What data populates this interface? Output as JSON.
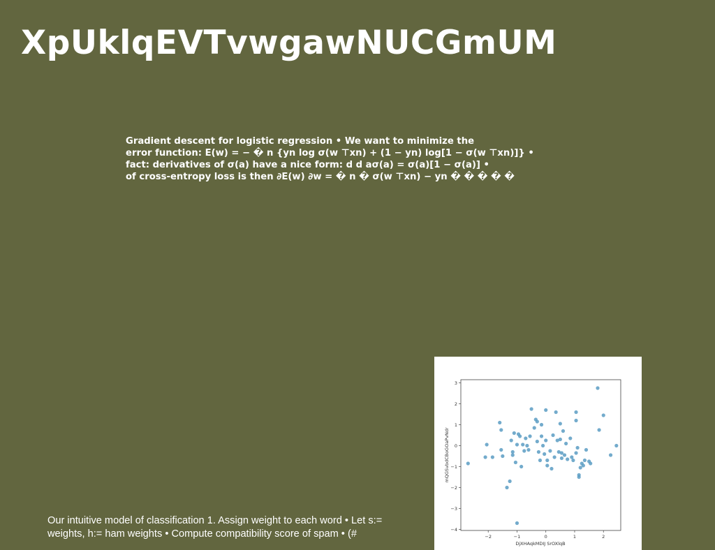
{
  "slide": {
    "title": "XpUklqEVTvwgawNUCGmUM",
    "body_lines": [
      "Gradient descent for logistic regression • We want to minimize the",
      "error function: E(w) = − � n {yn log σ(w ⊤xn) + (1 − yn) log[1 − σ(w ⊤xn)]} •",
      "fact: derivatives of σ(a) have a nice form: d d aσ(a) = σ(a)[1 − σ(a)] •",
      "of cross-entropy loss is then ∂E(w) ∂w = � n � σ(w ⊤xn) − yn � � � � �"
    ],
    "footer_lines": [
      "Our intuitive model of classification 1. Assign weight to each word • Let s:=",
      "weights, h:= ham weights • Compute compatibility score of spam • (#"
    ]
  },
  "chart_data": {
    "type": "scatter",
    "xlabel": "DjXHAqkMDIJ SrOXlqB",
    "ylabel": "mQGSvbdCBoGOaPvNdr",
    "xlim": [
      -2.95,
      2.6
    ],
    "ylim": [
      -4.05,
      3.15
    ],
    "xticks": [
      "−2",
      "−1",
      "0",
      "1",
      "2"
    ],
    "xtick_values": [
      -2,
      -1,
      0,
      1,
      2
    ],
    "yticks": [
      "3",
      "2",
      "1",
      "0",
      "−1",
      "−2",
      "−3",
      "−4"
    ],
    "ytick_values": [
      3,
      2,
      1,
      0,
      -1,
      -2,
      -3,
      -4
    ],
    "marker_color": "#5b9cc3",
    "points": [
      [
        -2.7,
        -0.85
      ],
      [
        -2.1,
        -0.55
      ],
      [
        -2.05,
        0.05
      ],
      [
        -1.85,
        -0.55
      ],
      [
        -1.6,
        1.1
      ],
      [
        -1.55,
        0.75
      ],
      [
        -1.55,
        -0.2
      ],
      [
        -1.5,
        -0.5
      ],
      [
        -1.35,
        -2.0
      ],
      [
        -1.25,
        -1.7
      ],
      [
        -1.2,
        0.25
      ],
      [
        -1.15,
        -0.3
      ],
      [
        -1.15,
        -0.45
      ],
      [
        -1.1,
        0.6
      ],
      [
        -1.05,
        -0.8
      ],
      [
        -1.0,
        0.05
      ],
      [
        -1.0,
        -3.7
      ],
      [
        -0.95,
        0.55
      ],
      [
        -0.9,
        0.45
      ],
      [
        -0.85,
        -1.0
      ],
      [
        -0.8,
        0.05
      ],
      [
        -0.75,
        -0.25
      ],
      [
        -0.7,
        0.35
      ],
      [
        -0.65,
        0.0
      ],
      [
        -0.6,
        -0.2
      ],
      [
        -0.55,
        0.45
      ],
      [
        -0.5,
        1.75
      ],
      [
        -0.4,
        0.85
      ],
      [
        -0.35,
        1.25
      ],
      [
        -0.3,
        1.15
      ],
      [
        -0.3,
        0.2
      ],
      [
        -0.25,
        -0.3
      ],
      [
        -0.2,
        -0.7
      ],
      [
        -0.15,
        0.45
      ],
      [
        -0.15,
        1.0
      ],
      [
        -0.1,
        0.0
      ],
      [
        -0.05,
        -0.4
      ],
      [
        0.0,
        1.7
      ],
      [
        0.0,
        0.25
      ],
      [
        0.05,
        -0.7
      ],
      [
        0.05,
        -0.95
      ],
      [
        0.15,
        -0.25
      ],
      [
        0.2,
        -1.1
      ],
      [
        0.25,
        0.5
      ],
      [
        0.3,
        -0.55
      ],
      [
        0.35,
        1.6
      ],
      [
        0.4,
        0.25
      ],
      [
        0.45,
        -0.3
      ],
      [
        0.5,
        1.05
      ],
      [
        0.5,
        0.3
      ],
      [
        0.55,
        -0.35
      ],
      [
        0.55,
        -0.6
      ],
      [
        0.6,
        0.7
      ],
      [
        0.65,
        -0.45
      ],
      [
        0.7,
        0.1
      ],
      [
        0.75,
        -0.65
      ],
      [
        0.85,
        0.35
      ],
      [
        0.9,
        -0.55
      ],
      [
        0.95,
        -0.7
      ],
      [
        1.05,
        1.2
      ],
      [
        1.05,
        1.6
      ],
      [
        1.05,
        -0.35
      ],
      [
        1.1,
        -0.1
      ],
      [
        1.15,
        -1.4
      ],
      [
        1.15,
        -1.5
      ],
      [
        1.2,
        -1.05
      ],
      [
        1.25,
        -0.85
      ],
      [
        1.3,
        -0.95
      ],
      [
        1.35,
        -0.7
      ],
      [
        1.4,
        -0.2
      ],
      [
        1.5,
        -0.75
      ],
      [
        1.55,
        -0.85
      ],
      [
        1.8,
        2.75
      ],
      [
        1.85,
        0.75
      ],
      [
        2.0,
        1.45
      ],
      [
        2.25,
        -0.45
      ],
      [
        2.45,
        0.0
      ]
    ]
  }
}
